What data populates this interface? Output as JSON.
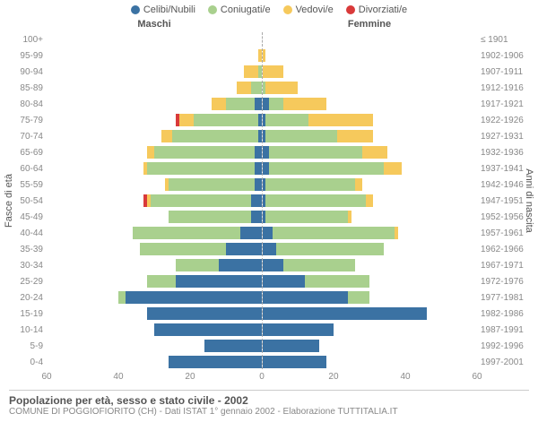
{
  "legend": [
    {
      "label": "Celibi/Nubili",
      "color": "#3b72a3"
    },
    {
      "label": "Coniugati/e",
      "color": "#a9d08e"
    },
    {
      "label": "Vedovi/e",
      "color": "#f6c95c"
    },
    {
      "label": "Divorziati/e",
      "color": "#d93a3a"
    }
  ],
  "colors": {
    "single": "#3b72a3",
    "married": "#a9d08e",
    "widowed": "#f6c95c",
    "divorced": "#d93a3a",
    "grid": "#dddddd",
    "center": "#aaaaaa"
  },
  "header_male": "Maschi",
  "header_female": "Femmine",
  "ylabel_left": "Fasce di età",
  "ylabel_right": "Anni di nascita",
  "xmax": 60,
  "xticks": [
    60,
    40,
    20,
    0,
    20,
    40,
    60
  ],
  "rows": [
    {
      "age": "100+",
      "years": "≤ 1901",
      "m": {
        "s": 0,
        "c": 0,
        "w": 0,
        "d": 0
      },
      "f": {
        "s": 0,
        "c": 0,
        "w": 0,
        "d": 0
      }
    },
    {
      "age": "95-99",
      "years": "1902-1906",
      "m": {
        "s": 0,
        "c": 0,
        "w": 1,
        "d": 0
      },
      "f": {
        "s": 0,
        "c": 0,
        "w": 1,
        "d": 0
      }
    },
    {
      "age": "90-94",
      "years": "1907-1911",
      "m": {
        "s": 0,
        "c": 1,
        "w": 4,
        "d": 0
      },
      "f": {
        "s": 0,
        "c": 0,
        "w": 6,
        "d": 0
      }
    },
    {
      "age": "85-89",
      "years": "1912-1916",
      "m": {
        "s": 0,
        "c": 3,
        "w": 4,
        "d": 0
      },
      "f": {
        "s": 0,
        "c": 1,
        "w": 9,
        "d": 0
      }
    },
    {
      "age": "80-84",
      "years": "1917-1921",
      "m": {
        "s": 2,
        "c": 8,
        "w": 4,
        "d": 0
      },
      "f": {
        "s": 2,
        "c": 4,
        "w": 12,
        "d": 0
      }
    },
    {
      "age": "75-79",
      "years": "1922-1926",
      "m": {
        "s": 1,
        "c": 18,
        "w": 4,
        "d": 1
      },
      "f": {
        "s": 1,
        "c": 12,
        "w": 18,
        "d": 0
      }
    },
    {
      "age": "70-74",
      "years": "1927-1931",
      "m": {
        "s": 1,
        "c": 24,
        "w": 3,
        "d": 0
      },
      "f": {
        "s": 1,
        "c": 20,
        "w": 10,
        "d": 0
      }
    },
    {
      "age": "65-69",
      "years": "1932-1936",
      "m": {
        "s": 2,
        "c": 28,
        "w": 2,
        "d": 0
      },
      "f": {
        "s": 2,
        "c": 26,
        "w": 7,
        "d": 0
      }
    },
    {
      "age": "60-64",
      "years": "1937-1941",
      "m": {
        "s": 2,
        "c": 30,
        "w": 1,
        "d": 0
      },
      "f": {
        "s": 2,
        "c": 32,
        "w": 5,
        "d": 0
      }
    },
    {
      "age": "55-59",
      "years": "1942-1946",
      "m": {
        "s": 2,
        "c": 24,
        "w": 1,
        "d": 0
      },
      "f": {
        "s": 1,
        "c": 25,
        "w": 2,
        "d": 0
      }
    },
    {
      "age": "50-54",
      "years": "1947-1951",
      "m": {
        "s": 3,
        "c": 28,
        "w": 1,
        "d": 1
      },
      "f": {
        "s": 1,
        "c": 28,
        "w": 2,
        "d": 0
      }
    },
    {
      "age": "45-49",
      "years": "1952-1956",
      "m": {
        "s": 3,
        "c": 23,
        "w": 0,
        "d": 0
      },
      "f": {
        "s": 1,
        "c": 23,
        "w": 1,
        "d": 0
      }
    },
    {
      "age": "40-44",
      "years": "1957-1961",
      "m": {
        "s": 6,
        "c": 30,
        "w": 0,
        "d": 0
      },
      "f": {
        "s": 3,
        "c": 34,
        "w": 1,
        "d": 0
      }
    },
    {
      "age": "35-39",
      "years": "1962-1966",
      "m": {
        "s": 10,
        "c": 24,
        "w": 0,
        "d": 0
      },
      "f": {
        "s": 4,
        "c": 30,
        "w": 0,
        "d": 0
      }
    },
    {
      "age": "30-34",
      "years": "1967-1971",
      "m": {
        "s": 12,
        "c": 12,
        "w": 0,
        "d": 0
      },
      "f": {
        "s": 6,
        "c": 20,
        "w": 0,
        "d": 0
      }
    },
    {
      "age": "25-29",
      "years": "1972-1976",
      "m": {
        "s": 24,
        "c": 8,
        "w": 0,
        "d": 0
      },
      "f": {
        "s": 12,
        "c": 18,
        "w": 0,
        "d": 0
      }
    },
    {
      "age": "20-24",
      "years": "1977-1981",
      "m": {
        "s": 38,
        "c": 2,
        "w": 0,
        "d": 0
      },
      "f": {
        "s": 24,
        "c": 6,
        "w": 0,
        "d": 0
      }
    },
    {
      "age": "15-19",
      "years": "1982-1986",
      "m": {
        "s": 32,
        "c": 0,
        "w": 0,
        "d": 0
      },
      "f": {
        "s": 46,
        "c": 0,
        "w": 0,
        "d": 0
      }
    },
    {
      "age": "10-14",
      "years": "1987-1991",
      "m": {
        "s": 30,
        "c": 0,
        "w": 0,
        "d": 0
      },
      "f": {
        "s": 20,
        "c": 0,
        "w": 0,
        "d": 0
      }
    },
    {
      "age": "5-9",
      "years": "1992-1996",
      "m": {
        "s": 16,
        "c": 0,
        "w": 0,
        "d": 0
      },
      "f": {
        "s": 16,
        "c": 0,
        "w": 0,
        "d": 0
      }
    },
    {
      "age": "0-4",
      "years": "1997-2001",
      "m": {
        "s": 26,
        "c": 0,
        "w": 0,
        "d": 0
      },
      "f": {
        "s": 18,
        "c": 0,
        "w": 0,
        "d": 0
      }
    }
  ],
  "title": "Popolazione per età, sesso e stato civile - 2002",
  "subtitle": "COMUNE DI POGGIOFIORITO (CH) - Dati ISTAT 1° gennaio 2002 - Elaborazione TUTTITALIA.IT"
}
